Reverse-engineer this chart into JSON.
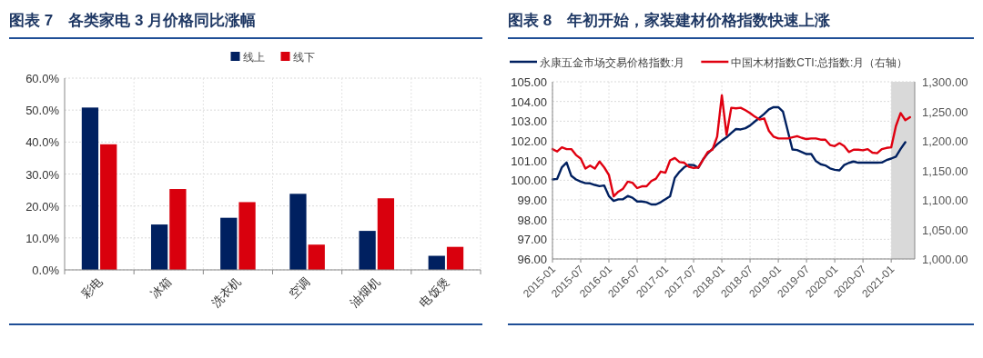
{
  "chart_data": [
    {
      "type": "bar",
      "title": "图表 7　各类家电 3 月价格同比涨幅",
      "categories": [
        "彩电",
        "冰箱",
        "洗衣机",
        "空调",
        "油烟机",
        "电饭煲"
      ],
      "series": [
        {
          "name": "线上",
          "color": "#002060",
          "values": [
            50.8,
            14.2,
            16.3,
            23.8,
            12.2,
            4.4
          ]
        },
        {
          "name": "线下",
          "color": "#d9000d",
          "values": [
            39.3,
            25.3,
            21.2,
            7.9,
            22.4,
            7.2
          ]
        }
      ],
      "ylim": [
        0,
        60
      ],
      "yticks": [
        {
          "value": 0,
          "label": "0.0%"
        },
        {
          "value": 10,
          "label": "10.0%"
        },
        {
          "value": 20,
          "label": "20.0%"
        },
        {
          "value": 30,
          "label": "30.0%"
        },
        {
          "value": 40,
          "label": "40.0%"
        },
        {
          "value": 50,
          "label": "50.0%"
        },
        {
          "value": 60,
          "label": "60.0%"
        }
      ],
      "grid": true,
      "legend": "top"
    },
    {
      "type": "line",
      "title": "图表 8　年初开始，家装建材价格指数快速上涨",
      "x": [
        "2015-01",
        "2015-02",
        "2015-03",
        "2015-04",
        "2015-05",
        "2015-06",
        "2015-07",
        "2015-08",
        "2015-09",
        "2015-10",
        "2015-11",
        "2015-12",
        "2016-01",
        "2016-02",
        "2016-03",
        "2016-04",
        "2016-05",
        "2016-06",
        "2016-07",
        "2016-08",
        "2016-09",
        "2016-10",
        "2016-11",
        "2016-12",
        "2017-01",
        "2017-02",
        "2017-03",
        "2017-04",
        "2017-05",
        "2017-06",
        "2017-07",
        "2017-08",
        "2017-09",
        "2017-10",
        "2017-11",
        "2017-12",
        "2018-01",
        "2018-02",
        "2018-03",
        "2018-04",
        "2018-05",
        "2018-06",
        "2018-07",
        "2018-08",
        "2018-09",
        "2018-10",
        "2018-11",
        "2018-12",
        "2019-01",
        "2019-02",
        "2019-03",
        "2019-04",
        "2019-05",
        "2019-06",
        "2019-07",
        "2019-08",
        "2019-09",
        "2019-10",
        "2019-11",
        "2019-12",
        "2020-01",
        "2020-02",
        "2020-03",
        "2020-04",
        "2020-05",
        "2020-06",
        "2020-07",
        "2020-08",
        "2020-09",
        "2020-10",
        "2020-11",
        "2020-12",
        "2021-01",
        "2021-02",
        "2021-03",
        "2021-04",
        "2021-05"
      ],
      "series": [
        {
          "name": "永康五金市场交易价格指数:月",
          "color": "#002060",
          "values": [
            100.04,
            100.07,
            100.66,
            100.9,
            100.22,
            100.04,
            99.93,
            99.85,
            99.84,
            99.76,
            99.7,
            99.73,
            99.19,
            98.95,
            99.03,
            99.03,
            99.2,
            99.11,
            98.92,
            98.92,
            98.88,
            98.77,
            98.77,
            98.88,
            99.03,
            99.19,
            100.12,
            100.43,
            100.66,
            100.78,
            100.77,
            100.63,
            101.05,
            101.36,
            101.59,
            101.82,
            102.02,
            102.18,
            102.4,
            102.6,
            102.58,
            102.64,
            102.78,
            102.98,
            103.17,
            103.37,
            103.6,
            103.71,
            103.71,
            103.48,
            102.52,
            101.56,
            101.53,
            101.43,
            101.33,
            101.33,
            100.97,
            100.81,
            100.75,
            100.6,
            100.53,
            100.5,
            100.77,
            100.88,
            100.95,
            100.89,
            100.89,
            100.89,
            100.89,
            100.89,
            100.9,
            101.02,
            101.1,
            101.2,
            101.59,
            101.93,
            null
          ]
        },
        {
          "name": "中国木材指数CTI:总指数:月（右轴）",
          "color": "#e00010",
          "axis": "y2",
          "values": [
            1186,
            1182,
            1189,
            1186,
            1186,
            1176,
            1170,
            1153,
            1158,
            1153,
            1165,
            1155,
            1142,
            1106,
            1114,
            1119,
            1131,
            1129,
            1120,
            1123,
            1123,
            1132,
            1136,
            1148,
            1146,
            1167,
            1171,
            1164,
            1163,
            1156,
            1154,
            1155,
            1168,
            1181,
            1185,
            1207,
            1277,
            1210,
            1256,
            1255,
            1256,
            1252,
            1247,
            1241,
            1236,
            1238,
            1217,
            1207,
            1204,
            1204,
            1204,
            1206,
            1208,
            1205,
            1203,
            1204,
            1204,
            1202,
            1202,
            1193,
            1191,
            1196,
            1191,
            1181,
            1185,
            1185,
            1184,
            1186,
            1180,
            1179,
            1186,
            1188,
            1189,
            1225,
            1247,
            1235,
            1240
          ]
        }
      ],
      "xlim": [
        "2015-01",
        "2021-06"
      ],
      "xticks": [
        "2015-01",
        "2015-07",
        "2016-01",
        "2016-07",
        "2017-01",
        "2017-07",
        "2018-01",
        "2018-07",
        "2019-01",
        "2019-07",
        "2020-01",
        "2020-07",
        "2021-01"
      ],
      "ylim": [
        96,
        105
      ],
      "yticks": [
        {
          "value": 96,
          "label": "96.00"
        },
        {
          "value": 97,
          "label": "97.00"
        },
        {
          "value": 98,
          "label": "98.00"
        },
        {
          "value": 99,
          "label": "99.00"
        },
        {
          "value": 100,
          "label": "100.00"
        },
        {
          "value": 101,
          "label": "101.00"
        },
        {
          "value": 102,
          "label": "102.00"
        },
        {
          "value": 103,
          "label": "103.00"
        },
        {
          "value": 104,
          "label": "104.00"
        },
        {
          "value": 105,
          "label": "105.00"
        }
      ],
      "y2lim": [
        1000,
        1300
      ],
      "y2ticks": [
        {
          "value": 1000,
          "label": "1,000.00"
        },
        {
          "value": 1050,
          "label": "1,050.00"
        },
        {
          "value": 1100,
          "label": "1,100.00"
        },
        {
          "value": 1150,
          "label": "1,150.00"
        },
        {
          "value": 1200,
          "label": "1,200.00"
        },
        {
          "value": 1250,
          "label": "1,250.00"
        },
        {
          "value": 1300,
          "label": "1,300.00"
        }
      ],
      "bands": [
        {
          "axis": "x",
          "from": "2021-01",
          "to": "2021-06",
          "color": "#d9d9d9"
        }
      ],
      "grid": true,
      "legend": "top"
    }
  ]
}
